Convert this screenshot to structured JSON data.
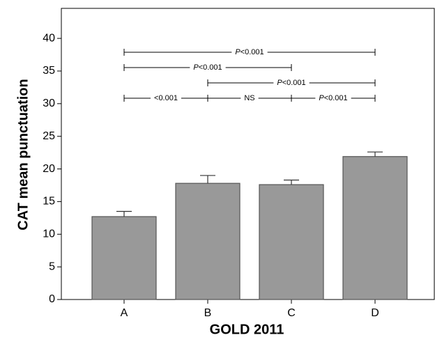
{
  "chart_data": {
    "type": "bar",
    "x_label": "GOLD 2011",
    "y_label": "CAT mean punctuation",
    "categories": [
      "A",
      "B",
      "C",
      "D"
    ],
    "values": [
      12.7,
      17.8,
      17.6,
      21.9
    ],
    "errors": [
      0.8,
      1.2,
      0.7,
      0.7
    ],
    "color": "#999999",
    "ylim": [
      0,
      44.6
    ],
    "yticks": [
      0,
      5,
      10,
      15,
      20,
      25,
      30,
      35,
      40
    ],
    "comparisons": [
      {
        "label": "P<0.001",
        "from": "A",
        "to": "D"
      },
      {
        "label": "P<0.001",
        "from": "A",
        "to": "C"
      },
      {
        "label": "P<0.001",
        "from": "B",
        "to": "D"
      },
      {
        "label": "<0.001",
        "from": "A",
        "to": "B"
      },
      {
        "label": "NS",
        "from": "B",
        "to": "C"
      },
      {
        "label": "P<0.001",
        "from": "C",
        "to": "D"
      }
    ]
  }
}
